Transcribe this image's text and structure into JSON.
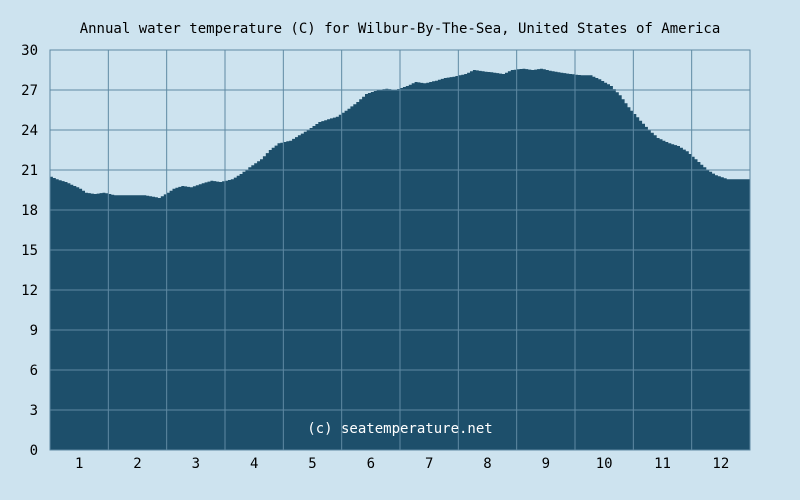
{
  "chart_data": {
    "type": "area",
    "title": "Annual water temperature (C) for Wilbur-By-The-Sea, United States of America",
    "xlabel": "",
    "ylabel": "",
    "ylim": [
      0,
      30
    ],
    "xlim": [
      0.5,
      12.5
    ],
    "yticks": [
      0,
      3,
      6,
      9,
      12,
      15,
      18,
      21,
      24,
      27,
      30
    ],
    "categories": [
      "1",
      "2",
      "3",
      "4",
      "5",
      "6",
      "7",
      "8",
      "9",
      "10",
      "11",
      "12"
    ],
    "grid": true,
    "watermark": "(c) seatemperature.net",
    "colors": {
      "background": "#cde3ef",
      "fill": "#1d4f6b",
      "grid": "#5f8aa3"
    },
    "series": [
      {
        "x": [
          0.5,
          0.6,
          0.75,
          0.9,
          1.0,
          1.1,
          1.25,
          1.4,
          1.6,
          1.75,
          1.9,
          2.1,
          2.25,
          2.35,
          2.5,
          2.6,
          2.75,
          2.9,
          3.1,
          3.25,
          3.4,
          3.6,
          3.75,
          3.9,
          4.1,
          4.25,
          4.4,
          4.6,
          4.75,
          4.9,
          5.1,
          5.25,
          5.4,
          5.6,
          5.75,
          5.9,
          6.1,
          6.25,
          6.4,
          6.6,
          6.75,
          6.9,
          7.1,
          7.25,
          7.4,
          7.6,
          7.75,
          7.9,
          8.1,
          8.25,
          8.4,
          8.6,
          8.75,
          8.9,
          9.1,
          9.25,
          9.4,
          9.6,
          9.75,
          9.9,
          10.1,
          10.25,
          10.4,
          10.6,
          10.75,
          10.9,
          11.1,
          11.25,
          11.4,
          11.6,
          11.75,
          11.9,
          12.1,
          12.25,
          12.5
        ],
        "values": [
          20.5,
          20.3,
          20.1,
          19.8,
          19.6,
          19.3,
          19.2,
          19.3,
          19.1,
          19.1,
          19.1,
          19.1,
          19.0,
          18.9,
          19.3,
          19.6,
          19.8,
          19.7,
          20.0,
          20.2,
          20.1,
          20.3,
          20.7,
          21.2,
          21.8,
          22.5,
          23.0,
          23.2,
          23.6,
          24.0,
          24.6,
          24.8,
          25.0,
          25.6,
          26.1,
          26.7,
          27.0,
          27.1,
          27.0,
          27.3,
          27.6,
          27.5,
          27.7,
          27.9,
          28.0,
          28.2,
          28.5,
          28.4,
          28.3,
          28.2,
          28.5,
          28.6,
          28.5,
          28.6,
          28.4,
          28.3,
          28.2,
          28.1,
          28.1,
          27.8,
          27.3,
          26.6,
          25.7,
          24.7,
          24.0,
          23.4,
          23.0,
          22.8,
          22.4,
          21.6,
          21.0,
          20.6,
          20.3,
          20.3,
          20.3
        ]
      }
    ]
  }
}
